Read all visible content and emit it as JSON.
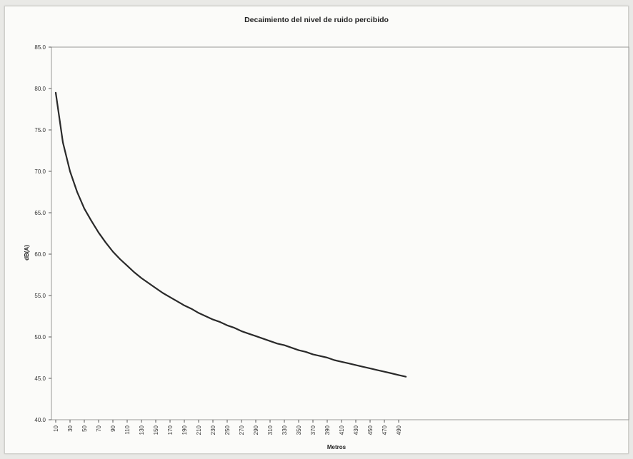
{
  "chart_data": {
    "type": "line",
    "title": "Decaimiento del nivel de ruido percibido",
    "xlabel": "Metros",
    "ylabel": "dB(A)",
    "ylim": [
      40,
      85
    ],
    "yticks": [
      "85.0",
      "80.0",
      "75.0",
      "70.0",
      "65.0",
      "60.0",
      "55.0",
      "50.0",
      "45.0",
      "40.0"
    ],
    "xticks": [
      "10",
      "30",
      "50",
      "70",
      "90",
      "110",
      "130",
      "150",
      "170",
      "190",
      "210",
      "230",
      "250",
      "270",
      "290",
      "310",
      "330",
      "350",
      "370",
      "390",
      "410",
      "430",
      "450",
      "470",
      "490"
    ],
    "grid": false,
    "legend": "none",
    "color": "#2a2a2a",
    "series": [
      {
        "x": [
          10,
          20,
          30,
          40,
          50,
          60,
          70,
          80,
          90,
          100,
          110,
          120,
          130,
          140,
          150,
          160,
          170,
          180,
          190,
          200,
          210,
          220,
          230,
          240,
          250,
          260,
          270,
          280,
          290,
          300,
          310,
          320,
          330,
          340,
          350,
          360,
          370,
          380,
          390,
          400,
          410,
          420,
          430,
          440,
          450,
          460,
          470,
          480,
          490,
          500
        ],
        "values": [
          79.5,
          73.5,
          70.0,
          67.5,
          65.5,
          64.0,
          62.6,
          61.4,
          60.3,
          59.4,
          58.6,
          57.8,
          57.1,
          56.5,
          55.9,
          55.3,
          54.8,
          54.3,
          53.8,
          53.4,
          52.9,
          52.5,
          52.1,
          51.8,
          51.4,
          51.1,
          50.7,
          50.4,
          50.1,
          49.8,
          49.5,
          49.2,
          49.0,
          48.7,
          48.4,
          48.2,
          47.9,
          47.7,
          47.5,
          47.2,
          47.0,
          46.8,
          46.6,
          46.4,
          46.2,
          46.0,
          45.8,
          45.6,
          45.4,
          45.2
        ]
      }
    ]
  }
}
